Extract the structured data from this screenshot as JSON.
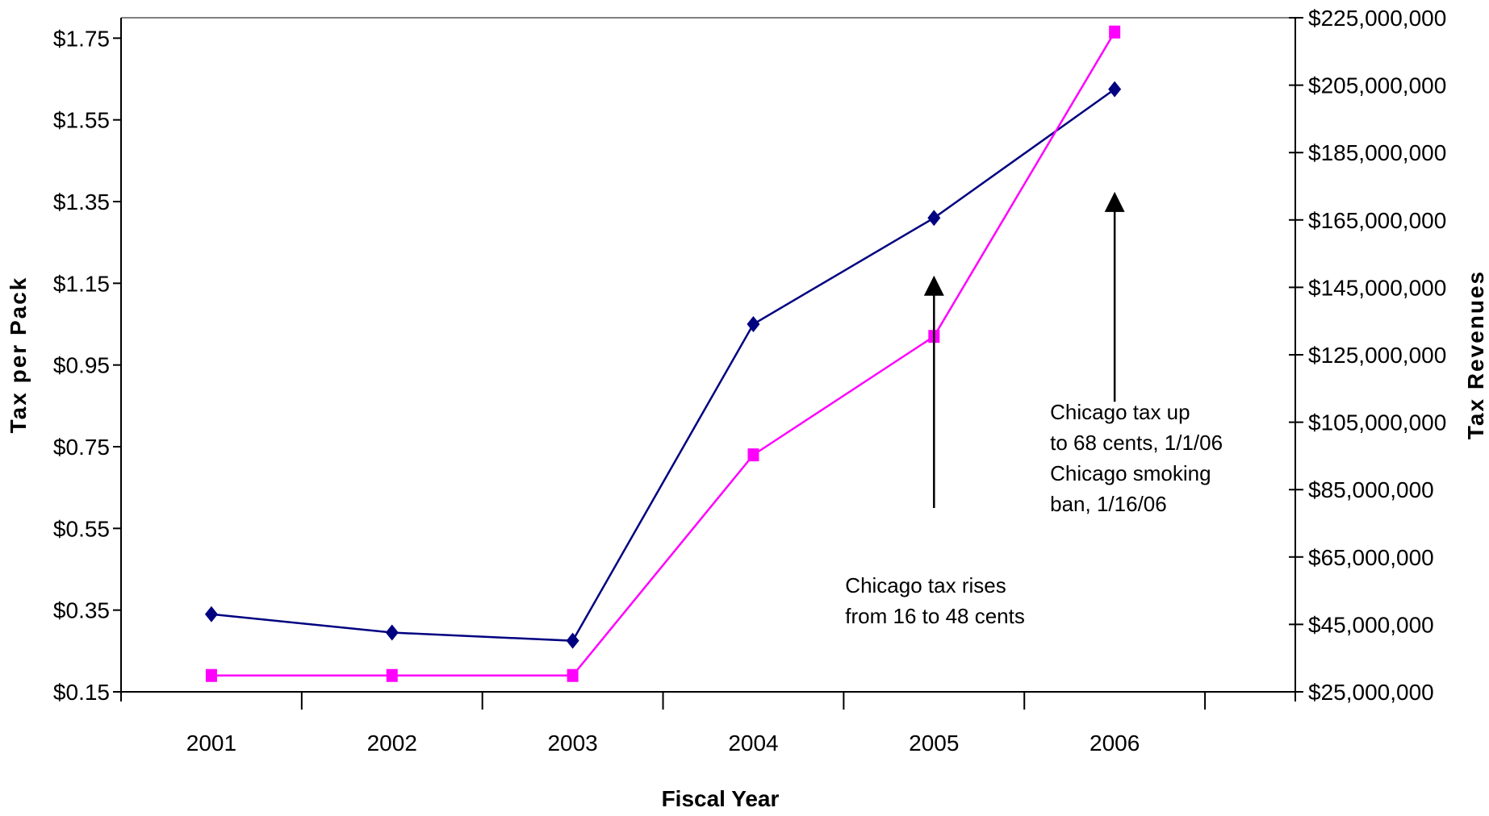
{
  "chart_data": {
    "type": "line",
    "x": [
      "2001",
      "2002",
      "2003",
      "2004",
      "2005",
      "2006"
    ],
    "xlabel": "Fiscal Year",
    "ylabel_left": "Tax per Pack",
    "ylabel_right": "Tax Revenues",
    "ylim_left": [
      0.15,
      1.8
    ],
    "ylim_right": [
      25000000,
      225000000
    ],
    "yticks_left": [
      "$0.15",
      "$0.35",
      "$0.55",
      "$0.75",
      "$0.95",
      "$1.15",
      "$1.35",
      "$1.55",
      "$1.75"
    ],
    "yticks_left_values": [
      0.15,
      0.35,
      0.55,
      0.75,
      0.95,
      1.15,
      1.35,
      1.55,
      1.75
    ],
    "yticks_right": [
      "$25,000,000",
      "$45,000,000",
      "$65,000,000",
      "$85,000,000",
      "$105,000,000",
      "$125,000,000",
      "$145,000,000",
      "$165,000,000",
      "$185,000,000",
      "$205,000,000",
      "$225,000,000"
    ],
    "yticks_right_values": [
      25000000,
      45000000,
      65000000,
      85000000,
      105000000,
      125000000,
      145000000,
      165000000,
      185000000,
      205000000,
      225000000
    ],
    "series": [
      {
        "values_left_axis": [
          0.34,
          0.295,
          0.275,
          1.05,
          1.31,
          1.625
        ],
        "values_right_axis": [
          47000000,
          42000000,
          40000000,
          133000000,
          165000000,
          202000000
        ],
        "color": "#000080",
        "marker": "diamond"
      },
      {
        "values_left_axis": [
          0.19,
          0.19,
          0.19,
          0.73,
          1.02,
          1.765
        ],
        "values_right_axis": [
          30000000,
          30000000,
          30000000,
          95000000,
          129000000,
          219000000
        ],
        "color": "#ff00ff",
        "marker": "square"
      }
    ],
    "annotations": [
      {
        "lines": [
          "Chicago tax rises",
          "from 16 to 48 cents"
        ],
        "arrow_x": 4.5,
        "arrow_from_value": 0.6,
        "arrow_to_value": 1.16
      },
      {
        "lines": [
          "Chicago tax up",
          "to 68 cents, 1/1/06",
          "Chicago smoking",
          "ban, 1/16/06"
        ],
        "arrow_x": 5.5,
        "arrow_from_value": 0.86,
        "arrow_to_value": 1.365
      }
    ],
    "grid": false,
    "legend": "none"
  }
}
